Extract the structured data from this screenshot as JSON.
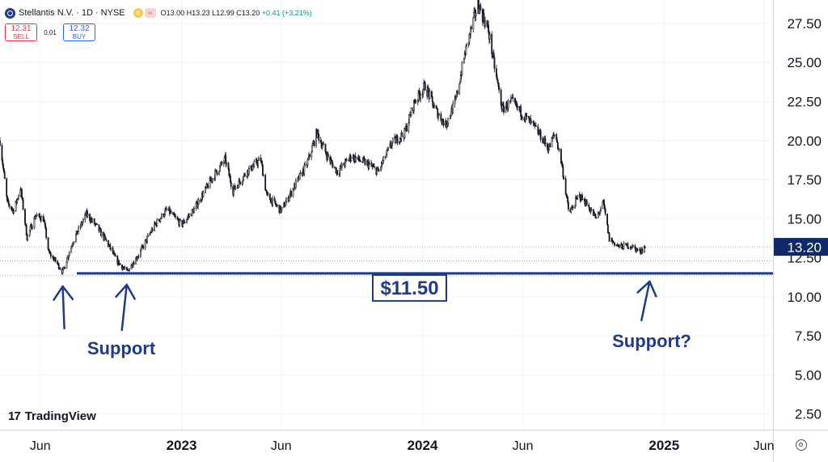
{
  "header": {
    "title": "Stellantis N.V. · 1D · NYSE",
    "ohlc_text": "O13.00 H13.23 L12.99 C13.20",
    "change_text": "+0.41 (+3.21%)"
  },
  "trade": {
    "sell_price": "12.31",
    "sell_label": "SELL",
    "spread": "0.01",
    "buy_price": "12.32",
    "buy_label": "BUY"
  },
  "watermark": "TradingView",
  "colors": {
    "accent": "#1f3a8a",
    "price_tag": "#0e2a6b",
    "candles": "#131722",
    "up_change": "#089981"
  },
  "chart_data": {
    "type": "candlestick",
    "symbol": "Stellantis N.V.",
    "interval": "1D",
    "exchange": "NYSE",
    "ylim": [
      1.5,
      29
    ],
    "xlim": [
      "2022-04-01",
      "2025-06-15"
    ],
    "y_ticks": [
      2.5,
      5,
      7.5,
      10,
      12.5,
      15,
      17.5,
      20,
      22.5,
      25,
      27.5
    ],
    "y_tick_labels": [
      "2.50",
      "5.00",
      "7.50",
      "10.00",
      "12.50",
      "15.00",
      "17.50",
      "20.00",
      "22.50",
      "25.00",
      "27.50"
    ],
    "x_ticks": [
      {
        "date": "2022-06-01",
        "label": "Jun",
        "bold": false
      },
      {
        "date": "2023-01-01",
        "label": "2023",
        "bold": true
      },
      {
        "date": "2023-06-01",
        "label": "Jun",
        "bold": false
      },
      {
        "date": "2024-01-01",
        "label": "2024",
        "bold": true
      },
      {
        "date": "2024-06-01",
        "label": "Jun",
        "bold": false
      },
      {
        "date": "2025-01-01",
        "label": "2025",
        "bold": true
      },
      {
        "date": "2025-06-01",
        "label": "Jun",
        "bold": false
      }
    ],
    "last_price": 13.2,
    "last_price_label": "13.20",
    "price_path": [
      [
        "2022-04-01",
        20.0
      ],
      [
        "2022-04-12",
        16.0
      ],
      [
        "2022-04-22",
        15.5
      ],
      [
        "2022-05-02",
        17.0
      ],
      [
        "2022-05-12",
        13.8
      ],
      [
        "2022-05-25",
        15.2
      ],
      [
        "2022-06-06",
        15.0
      ],
      [
        "2022-06-14",
        12.8
      ],
      [
        "2022-06-24",
        12.3
      ],
      [
        "2022-07-05",
        11.6
      ],
      [
        "2022-07-20",
        13.5
      ],
      [
        "2022-08-10",
        15.3
      ],
      [
        "2022-08-25",
        14.5
      ],
      [
        "2022-09-10",
        13.5
      ],
      [
        "2022-09-25",
        12.3
      ],
      [
        "2022-10-10",
        11.6
      ],
      [
        "2022-10-28",
        12.7
      ],
      [
        "2022-11-20",
        14.5
      ],
      [
        "2022-12-10",
        15.6
      ],
      [
        "2023-01-01",
        14.6
      ],
      [
        "2023-01-20",
        15.6
      ],
      [
        "2023-02-15",
        17.5
      ],
      [
        "2023-03-08",
        18.8
      ],
      [
        "2023-03-20",
        16.8
      ],
      [
        "2023-04-10",
        18.0
      ],
      [
        "2023-05-01",
        18.8
      ],
      [
        "2023-05-10",
        16.5
      ],
      [
        "2023-06-01",
        15.5
      ],
      [
        "2023-06-20",
        17.0
      ],
      [
        "2023-07-10",
        18.5
      ],
      [
        "2023-07-25",
        20.5
      ],
      [
        "2023-08-10",
        19.0
      ],
      [
        "2023-08-25",
        18.0
      ],
      [
        "2023-09-15",
        19.0
      ],
      [
        "2023-10-10",
        18.5
      ],
      [
        "2023-10-26",
        18.0
      ],
      [
        "2023-11-15",
        19.8
      ],
      [
        "2023-12-05",
        20.5
      ],
      [
        "2023-12-20",
        22.5
      ],
      [
        "2024-01-05",
        23.5
      ],
      [
        "2024-01-20",
        22.0
      ],
      [
        "2024-02-05",
        21.0
      ],
      [
        "2024-02-20",
        22.5
      ],
      [
        "2024-03-05",
        25.5
      ],
      [
        "2024-03-25",
        28.8
      ],
      [
        "2024-04-10",
        27.0
      ],
      [
        "2024-04-20",
        24.5
      ],
      [
        "2024-05-01",
        22.0
      ],
      [
        "2024-05-15",
        22.5
      ],
      [
        "2024-06-05",
        21.5
      ],
      [
        "2024-06-25",
        20.5
      ],
      [
        "2024-07-10",
        19.5
      ],
      [
        "2024-07-20",
        20.5
      ],
      [
        "2024-07-30",
        18.5
      ],
      [
        "2024-08-10",
        15.3
      ],
      [
        "2024-08-25",
        16.5
      ],
      [
        "2024-09-05",
        16.0
      ],
      [
        "2024-09-20",
        15.0
      ],
      [
        "2024-10-01",
        16.0
      ],
      [
        "2024-10-10",
        13.7
      ],
      [
        "2024-10-25",
        13.2
      ],
      [
        "2024-11-10",
        13.3
      ],
      [
        "2024-11-25",
        12.9
      ],
      [
        "2024-12-03",
        13.2
      ]
    ],
    "annotations": {
      "support_level": 11.5,
      "support_level_label": "$11.50",
      "left_label": "Support",
      "left_arrow_dates": [
        "2022-07-05",
        "2022-10-10"
      ],
      "right_label": "Support?",
      "right_arrow_date": "2024-12-10"
    }
  }
}
